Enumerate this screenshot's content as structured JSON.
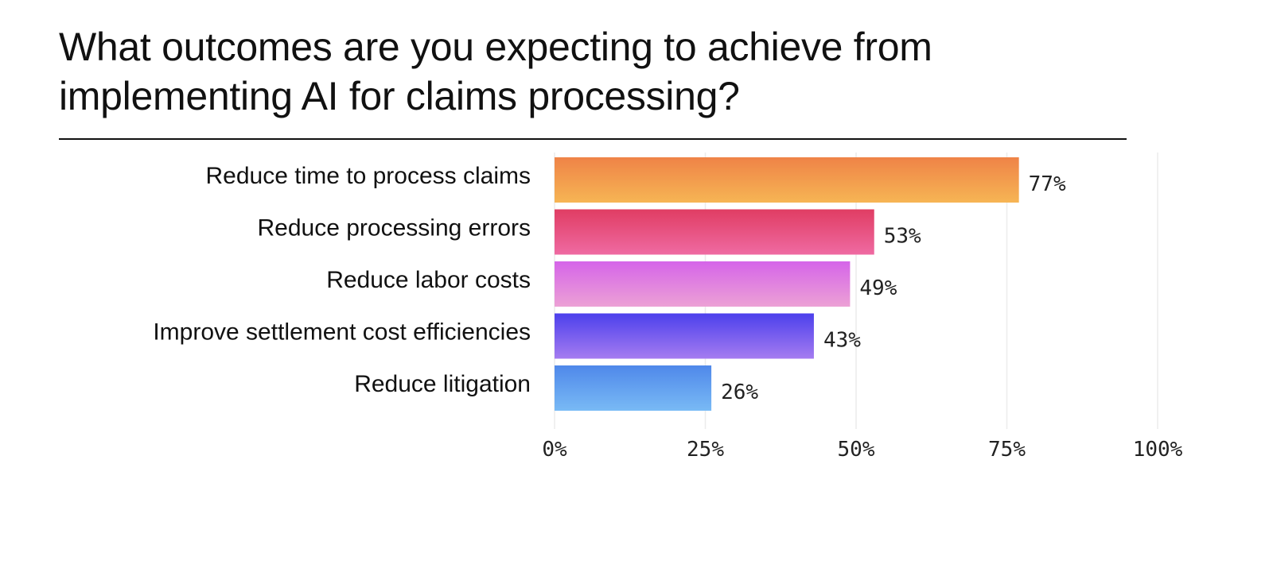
{
  "chart_data": {
    "type": "bar",
    "orientation": "horizontal",
    "title": "What outcomes are you expecting to achieve from implementing AI for claims processing?",
    "categories": [
      "Reduce time to process claims",
      "Reduce processing errors",
      "Reduce labor costs",
      "Improve settlement cost efficiencies",
      "Reduce litigation"
    ],
    "values": [
      77,
      53,
      49,
      43,
      26
    ],
    "value_labels": [
      "77%",
      "53%",
      "49%",
      "43%",
      "26%"
    ],
    "xlim": [
      0,
      100
    ],
    "xticks": [
      0,
      25,
      50,
      75,
      100
    ],
    "xtick_labels": [
      "0%",
      "25%",
      "50%",
      "75%",
      "100%"
    ],
    "grid": true,
    "bar_gradients": [
      [
        "#ef8347",
        "#f6b554"
      ],
      [
        "#e03d63",
        "#ef6aa2"
      ],
      [
        "#d564e9",
        "#eca1d5"
      ],
      [
        "#4c40ec",
        "#a57cf0"
      ],
      [
        "#4f88ea",
        "#79baf5"
      ]
    ]
  }
}
